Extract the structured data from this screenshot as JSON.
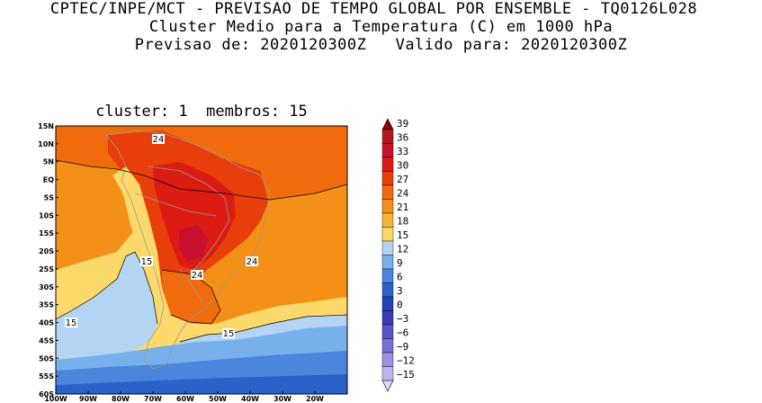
{
  "titles": {
    "line1": "CPTEC/INPE/MCT - PREVISAO DE TEMPO GLOBAL POR ENSEMBLE - TQ0126L028",
    "line2": "Cluster Medio para a Temperatura (C) em 1000 hPa",
    "line3": "Previsao de: 2020120300Z   Valido para: 2020120300Z"
  },
  "panel": {
    "title": "cluster: 1  membros: 15"
  },
  "axes": {
    "lat_labels": [
      "15N",
      "10N",
      "5N",
      "EQ",
      "5S",
      "10S",
      "15S",
      "20S",
      "25S",
      "30S",
      "35S",
      "40S",
      "45S",
      "50S",
      "55S",
      "60S"
    ],
    "lon_labels": [
      "100W",
      "90W",
      "80W",
      "70W",
      "60W",
      "50W",
      "40W",
      "30W",
      "20W"
    ]
  },
  "colorbar": {
    "levels": [
      "39",
      "36",
      "33",
      "30",
      "27",
      "24",
      "21",
      "18",
      "15",
      "12",
      "9",
      "6",
      "3",
      "0",
      "-3",
      "-6",
      "-9",
      "-12",
      "-15"
    ],
    "colors": [
      "#8b0000",
      "#b0171f",
      "#c8102e",
      "#dc1c13",
      "#e83e0c",
      "#f06b0d",
      "#f39017",
      "#f6b43c",
      "#fbd96b",
      "#b4d4f4",
      "#78b0ec",
      "#4a86dc",
      "#2a62c8",
      "#1e44b4",
      "#3d3bb4",
      "#5a52c8",
      "#7a70d8",
      "#9c92e4",
      "#bcb4ee",
      "#dcd6f8"
    ],
    "top_color": "#8b0000",
    "bottom_color": "#dcd6f8"
  },
  "contour_labels": [
    {
      "text": "24",
      "where": "north-colombia"
    },
    {
      "text": "15",
      "where": "pacific-central"
    },
    {
      "text": "24",
      "where": "south-brazil"
    },
    {
      "text": "24",
      "where": "atlantic-east"
    },
    {
      "text": "15",
      "where": "pacific-south"
    },
    {
      "text": "15",
      "where": "atlantic-south"
    }
  ],
  "colors": {
    "ocean_warm": "#f39017",
    "land_hot": "#e83e0c",
    "pale": "#fbd96b",
    "cool": "#b4d4f4",
    "cold": "#4a86dc"
  }
}
